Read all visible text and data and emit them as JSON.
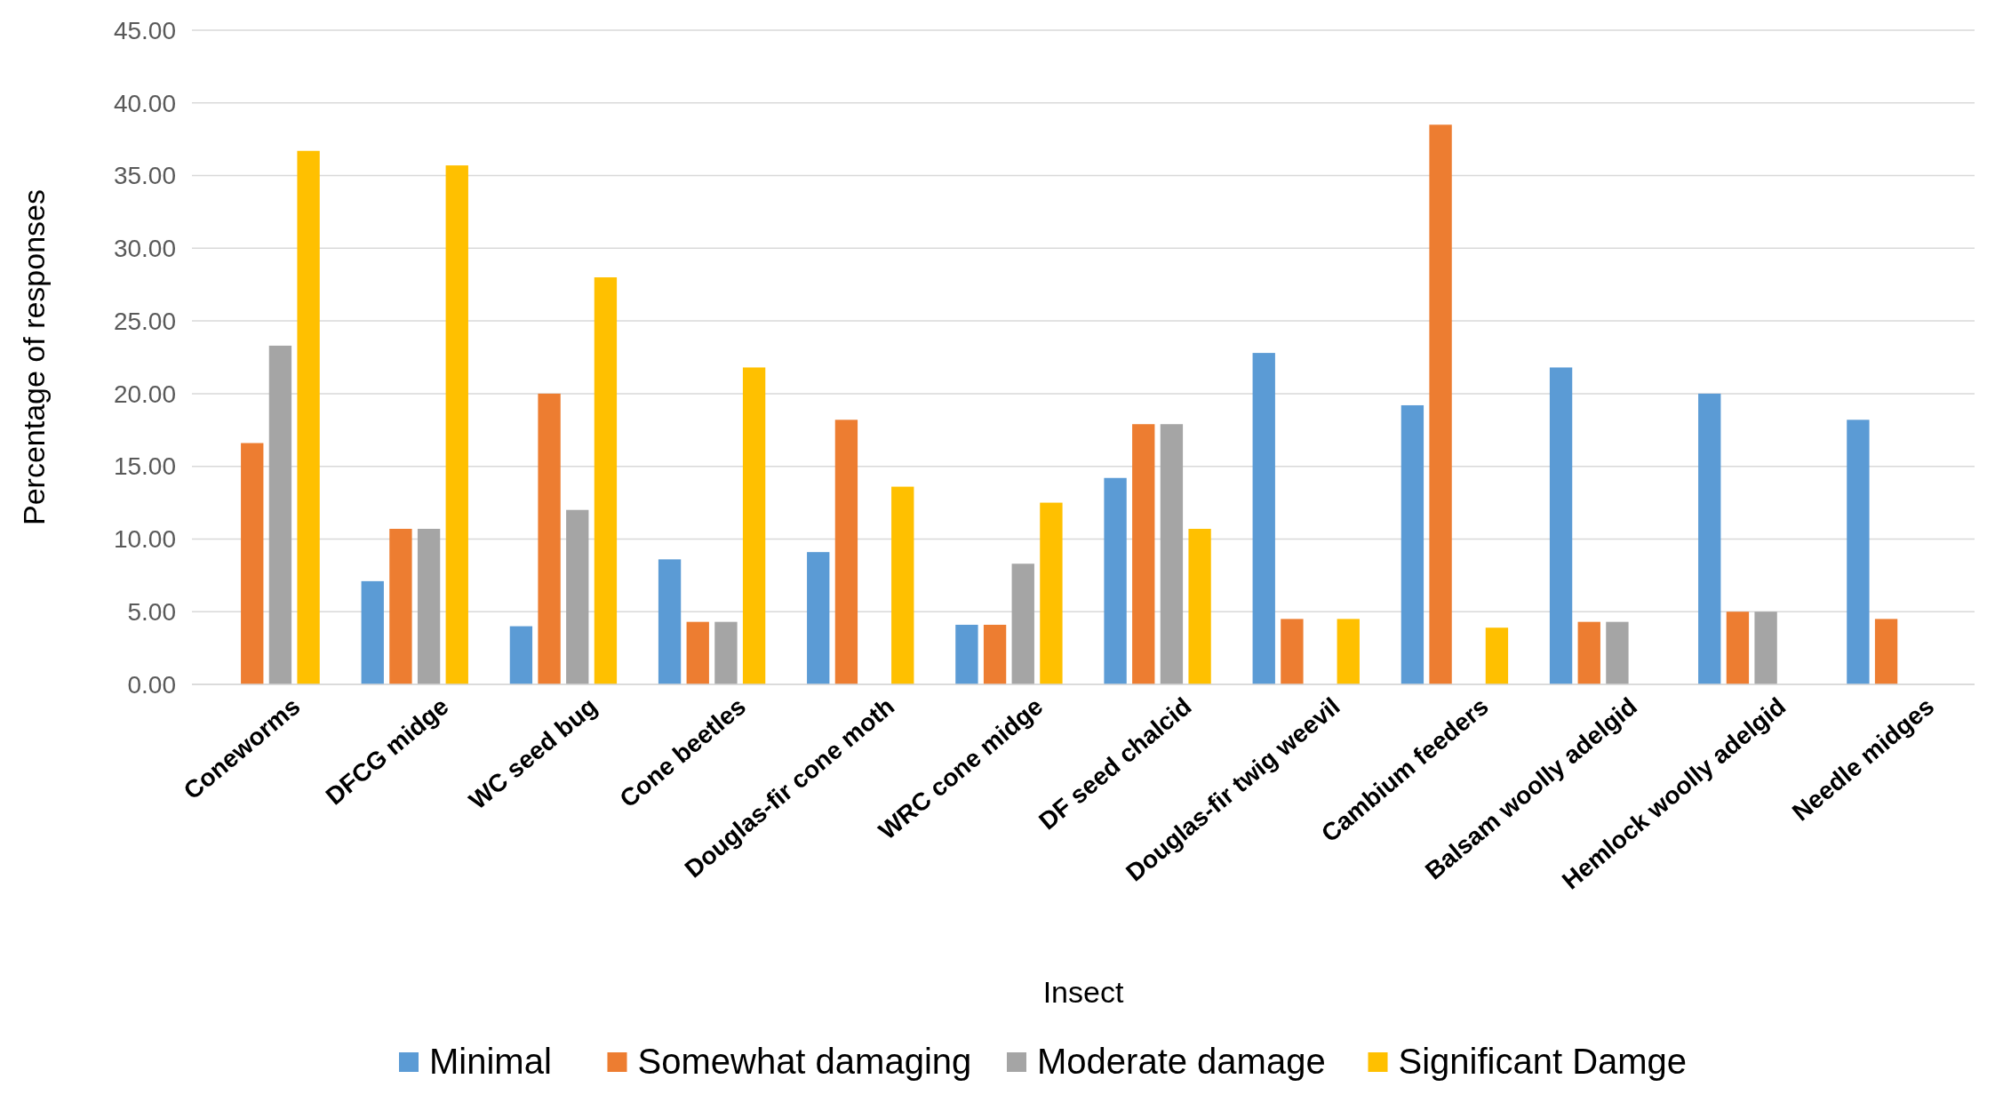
{
  "chart_data": {
    "type": "bar",
    "xlabel": "Insect",
    "ylabel": "Percentage of responses",
    "categories": [
      "Coneworms",
      "DFCG midge",
      "WC seed bug",
      "Cone beetles",
      "Douglas-fir cone moth",
      "WRC cone midge",
      "DF seed chalcid",
      "Douglas-fir twig weevil",
      "Cambium feeders",
      "Balsam woolly adelgid",
      "Hemlock woolly adelgid",
      "Needle midges"
    ],
    "series": [
      {
        "name": "Minimal",
        "color": "#5b9bd5",
        "values": [
          null,
          7.1,
          4.0,
          8.6,
          9.1,
          4.1,
          14.2,
          22.8,
          19.2,
          21.8,
          20.0,
          18.2
        ]
      },
      {
        "name": "Somewhat damaging",
        "color": "#ed7d31",
        "values": [
          16.6,
          10.7,
          20.0,
          4.3,
          18.2,
          4.1,
          17.9,
          4.5,
          38.5,
          4.3,
          5.0,
          4.5
        ]
      },
      {
        "name": "Moderate damage",
        "color": "#a5a5a5",
        "values": [
          23.3,
          10.7,
          12.0,
          4.3,
          null,
          8.3,
          17.9,
          null,
          null,
          4.3,
          5.0,
          null
        ]
      },
      {
        "name": "Significant Damge",
        "color": "#ffc000",
        "values": [
          36.7,
          35.7,
          28.0,
          21.8,
          13.6,
          12.5,
          10.7,
          4.5,
          3.9,
          null,
          null,
          null
        ]
      }
    ],
    "ylim": [
      0,
      45
    ],
    "yticks": [
      {
        "value": 0,
        "label": "0.00"
      },
      {
        "value": 5,
        "label": "5.00"
      },
      {
        "value": 10,
        "label": "10.00"
      },
      {
        "value": 15,
        "label": "15.00"
      },
      {
        "value": 20,
        "label": "20.00"
      },
      {
        "value": 25,
        "label": "25.00"
      },
      {
        "value": 30,
        "label": "30.00"
      },
      {
        "value": 35,
        "label": "35.00"
      },
      {
        "value": 40,
        "label": "40.00"
      },
      {
        "value": 45,
        "label": "45.00"
      }
    ],
    "grid": "y",
    "legend": "bottom"
  }
}
